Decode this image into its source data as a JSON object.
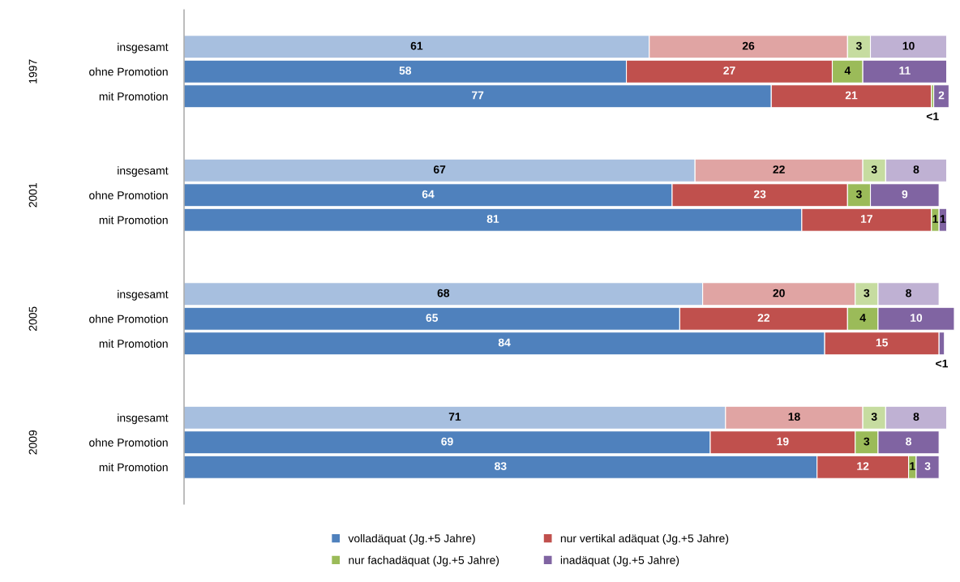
{
  "chart_data": {
    "type": "bar",
    "orientation": "horizontal",
    "stacked": true,
    "xlim": [
      0,
      101
    ],
    "tick_labels": "y",
    "data_labels": true,
    "legend": "bottom",
    "annotations": [
      "1997",
      "2001",
      "2005",
      "2009"
    ],
    "categories": [
      null,
      "insgesamt",
      "ohne Promotion",
      "mit Promotion",
      null,
      null,
      "insgesamt",
      "ohne Promotion",
      "mit Promotion",
      null,
      null,
      "insgesamt",
      "ohne Promotion",
      "mit Promotion",
      null,
      null,
      "insgesamt",
      "ohne Promotion",
      "mit Promotion",
      null
    ],
    "series": [
      {
        "name": "volladäquat (Jg.+5 Jahre)",
        "color": "#4f81bd",
        "colors": [
          null,
          "#a7bfdf",
          "#4f81bd",
          "#4f81bd",
          null,
          null,
          "#a7bfdf",
          "#4f81bd",
          "#4f81bd",
          null,
          null,
          "#a7bfdf",
          "#4f81bd",
          "#4f81bd",
          null,
          null,
          "#a7bfdf",
          "#4f81bd",
          "#4f81bd",
          null
        ],
        "values": [
          null,
          61,
          58,
          77,
          null,
          null,
          67,
          64,
          81,
          null,
          null,
          68,
          65,
          84,
          null,
          null,
          71,
          69,
          83,
          null
        ]
      },
      {
        "name": "nur vertikal adäquat (Jg.+5 Jahre)",
        "color": "#c0504d",
        "colors": [
          null,
          "#e0a4a3",
          "#c0504d",
          "#c0504d",
          null,
          null,
          "#e0a4a3",
          "#c0504d",
          "#c0504d",
          null,
          null,
          "#e0a4a3",
          "#c0504d",
          "#c0504d",
          null,
          null,
          "#e0a4a3",
          "#c0504d",
          "#c0504d",
          null
        ],
        "values": [
          null,
          26,
          27,
          21,
          null,
          null,
          22,
          23,
          17,
          null,
          null,
          20,
          22,
          15,
          null,
          null,
          18,
          19,
          12,
          null
        ]
      },
      {
        "name": "nur fachadäquat (Jg.+5 Jahre)",
        "color": "#9bbb59",
        "colors": [
          null,
          "#c6dca0",
          "#9bbb59",
          "#9bbb59",
          null,
          null,
          "#c6dca0",
          "#9bbb59",
          "#9bbb59",
          null,
          null,
          "#c6dca0",
          "#9bbb59",
          "#9bbb59",
          null,
          null,
          "#c6dca0",
          "#9bbb59",
          "#9bbb59",
          null
        ],
        "values": [
          null,
          3,
          4,
          0.3,
          null,
          null,
          3,
          3,
          1,
          null,
          null,
          3,
          4,
          null,
          null,
          null,
          3,
          3,
          1,
          null
        ],
        "value_labels": [
          null,
          "3",
          "4",
          "<1",
          null,
          null,
          "3",
          "3",
          "1",
          null,
          null,
          "3",
          "4",
          null,
          null,
          null,
          "3",
          "3",
          "1",
          null
        ]
      },
      {
        "name": "inadäquat (Jg.+5 Jahre)",
        "color": "#8064a2",
        "colors": [
          null,
          "#bfb1d3",
          "#8064a2",
          "#8064a2",
          null,
          null,
          "#bfb1d3",
          "#8064a2",
          "#8064a2",
          null,
          null,
          "#bfb1d3",
          "#8064a2",
          "#8064a2",
          null,
          null,
          "#bfb1d3",
          "#8064a2",
          "#8064a2",
          null
        ],
        "values": [
          null,
          10,
          11,
          2,
          null,
          null,
          8,
          9,
          1,
          null,
          null,
          8,
          10,
          0.7,
          null,
          null,
          8,
          8,
          3,
          null
        ],
        "value_labels": [
          null,
          "10",
          "11",
          "2",
          null,
          null,
          "8",
          "9",
          "1",
          null,
          null,
          "8",
          "10",
          "<1",
          null,
          null,
          "8",
          "8",
          "3",
          null
        ]
      }
    ]
  }
}
